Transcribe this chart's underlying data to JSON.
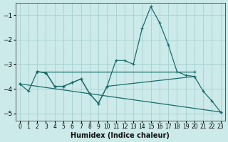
{
  "xlabel": "Humidex (Indice chaleur)",
  "xlim": [
    -0.5,
    23.5
  ],
  "ylim": [
    -5.3,
    -0.5
  ],
  "yticks": [
    -5,
    -4,
    -3,
    -2,
    -1
  ],
  "xticks": [
    0,
    1,
    2,
    3,
    4,
    5,
    6,
    7,
    8,
    9,
    10,
    11,
    12,
    13,
    14,
    15,
    16,
    17,
    18,
    19,
    20,
    21,
    22,
    23
  ],
  "bg_color": "#cceaea",
  "grid_color": "#aad4d4",
  "line_color": "#1a6b6b",
  "lines": [
    {
      "x": [
        0,
        1,
        2,
        3,
        4,
        5,
        6,
        7,
        8,
        9,
        10,
        11,
        12,
        13,
        14,
        15,
        16,
        17,
        18,
        19,
        20,
        21,
        22,
        23
      ],
      "y": [
        -3.8,
        -4.1,
        -3.3,
        -3.35,
        -3.9,
        -3.9,
        -3.75,
        -3.6,
        -4.2,
        -4.6,
        -3.9,
        -2.85,
        -2.85,
        -3.0,
        -1.55,
        -0.65,
        -1.3,
        -2.2,
        -3.3,
        -3.45,
        -3.5,
        -4.1,
        -4.5,
        -4.95
      ]
    },
    {
      "x": [
        2,
        20
      ],
      "y": [
        -3.3,
        -3.3
      ]
    },
    {
      "x": [
        2,
        3,
        4,
        5,
        6,
        7,
        8,
        9,
        10,
        20
      ],
      "y": [
        -3.3,
        -3.35,
        -3.9,
        -3.9,
        -3.75,
        -3.6,
        -4.2,
        -4.6,
        -3.9,
        -3.5
      ]
    },
    {
      "x": [
        0,
        23
      ],
      "y": [
        -3.8,
        -4.95
      ]
    }
  ]
}
